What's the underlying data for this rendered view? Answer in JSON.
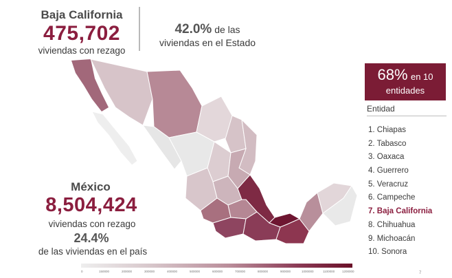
{
  "state": {
    "name": "Baja California",
    "count": "475,702",
    "count_label": "viviendas con rezago",
    "pct_value": "42.0%",
    "pct_suffix": "de las",
    "pct_label": "viviendas en el Estado"
  },
  "national": {
    "name": "México",
    "count": "8,504,424",
    "count_label": "viviendas con rezago",
    "pct_value": "24.4%",
    "pct_label": "de las viviendas en el país"
  },
  "summary": {
    "pct": "68%",
    "text_en": "en 10",
    "text_entidades": "entidades"
  },
  "ranking_header": "Entidad",
  "ranking": [
    {
      "label": "1.  Chiapas"
    },
    {
      "label": "2.  Tabasco"
    },
    {
      "label": "3.  Oaxaca"
    },
    {
      "label": "4.  Guerrero"
    },
    {
      "label": "5.   Veracruz"
    },
    {
      "label": "6.  Campeche"
    },
    {
      "label": "7.  Baja California"
    },
    {
      "label": "8.  Chihuahua"
    },
    {
      "label": "9.  Michoacán"
    },
    {
      "label": "10. Sonora"
    }
  ],
  "legend_ticks": [
    "0",
    "150000",
    "200000",
    "300000",
    "400000",
    "500000",
    "600000",
    "700000",
    "800000",
    "900000",
    "1000000",
    "1100000",
    "1200000"
  ],
  "page_number": "7",
  "colors": {
    "accent": "#8b1e3f",
    "box": "#7b1c35",
    "text": "#3a3a3a"
  }
}
